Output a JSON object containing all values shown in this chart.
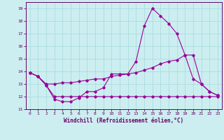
{
  "xlabel": "Windchill (Refroidissement éolien,°C)",
  "bg_color": "#cceef0",
  "grid_color": "#aadddd",
  "line_color": "#990099",
  "spine_color": "#660066",
  "tick_color": "#660066",
  "x_ticks": [
    0,
    1,
    2,
    3,
    4,
    5,
    6,
    7,
    8,
    9,
    10,
    11,
    12,
    13,
    14,
    15,
    16,
    17,
    18,
    19,
    20,
    21,
    22,
    23
  ],
  "y_ticks": [
    11,
    12,
    13,
    14,
    15,
    16,
    17,
    18,
    19
  ],
  "ylim": [
    11,
    19.5
  ],
  "xlim": [
    -0.5,
    23.5
  ],
  "series1_x": [
    0,
    1,
    2,
    3,
    4,
    5,
    6,
    7,
    8,
    9,
    10,
    11,
    12,
    13,
    14,
    15,
    16,
    17,
    18,
    19,
    20,
    21,
    22,
    23
  ],
  "series1_y": [
    13.9,
    13.6,
    12.9,
    11.8,
    11.6,
    11.6,
    11.9,
    12.4,
    12.4,
    12.7,
    13.8,
    13.8,
    13.8,
    14.8,
    17.6,
    19.0,
    18.4,
    17.8,
    17.0,
    15.3,
    13.4,
    13.0,
    12.4,
    12.1
  ],
  "series2_x": [
    0,
    1,
    2,
    3,
    4,
    5,
    6,
    7,
    8,
    9,
    10,
    11,
    12,
    13,
    14,
    15,
    16,
    17,
    18,
    19,
    20,
    21,
    22,
    23
  ],
  "series2_y": [
    13.9,
    13.6,
    12.9,
    12.0,
    12.0,
    12.0,
    12.0,
    12.0,
    12.0,
    12.0,
    12.0,
    12.0,
    12.0,
    12.0,
    12.0,
    12.0,
    12.0,
    12.0,
    12.0,
    12.0,
    12.0,
    12.0,
    12.0,
    12.0
  ],
  "series3_x": [
    0,
    1,
    2,
    3,
    4,
    5,
    6,
    7,
    8,
    9,
    10,
    11,
    12,
    13,
    14,
    15,
    16,
    17,
    18,
    19,
    20,
    21,
    22,
    23
  ],
  "series3_y": [
    13.9,
    13.6,
    13.0,
    13.0,
    13.1,
    13.1,
    13.2,
    13.3,
    13.4,
    13.4,
    13.6,
    13.7,
    13.8,
    13.9,
    14.1,
    14.3,
    14.6,
    14.8,
    14.9,
    15.3,
    15.3,
    13.0,
    12.4,
    12.1
  ],
  "label_fontsize": 4.5,
  "xlabel_fontsize": 5.5
}
